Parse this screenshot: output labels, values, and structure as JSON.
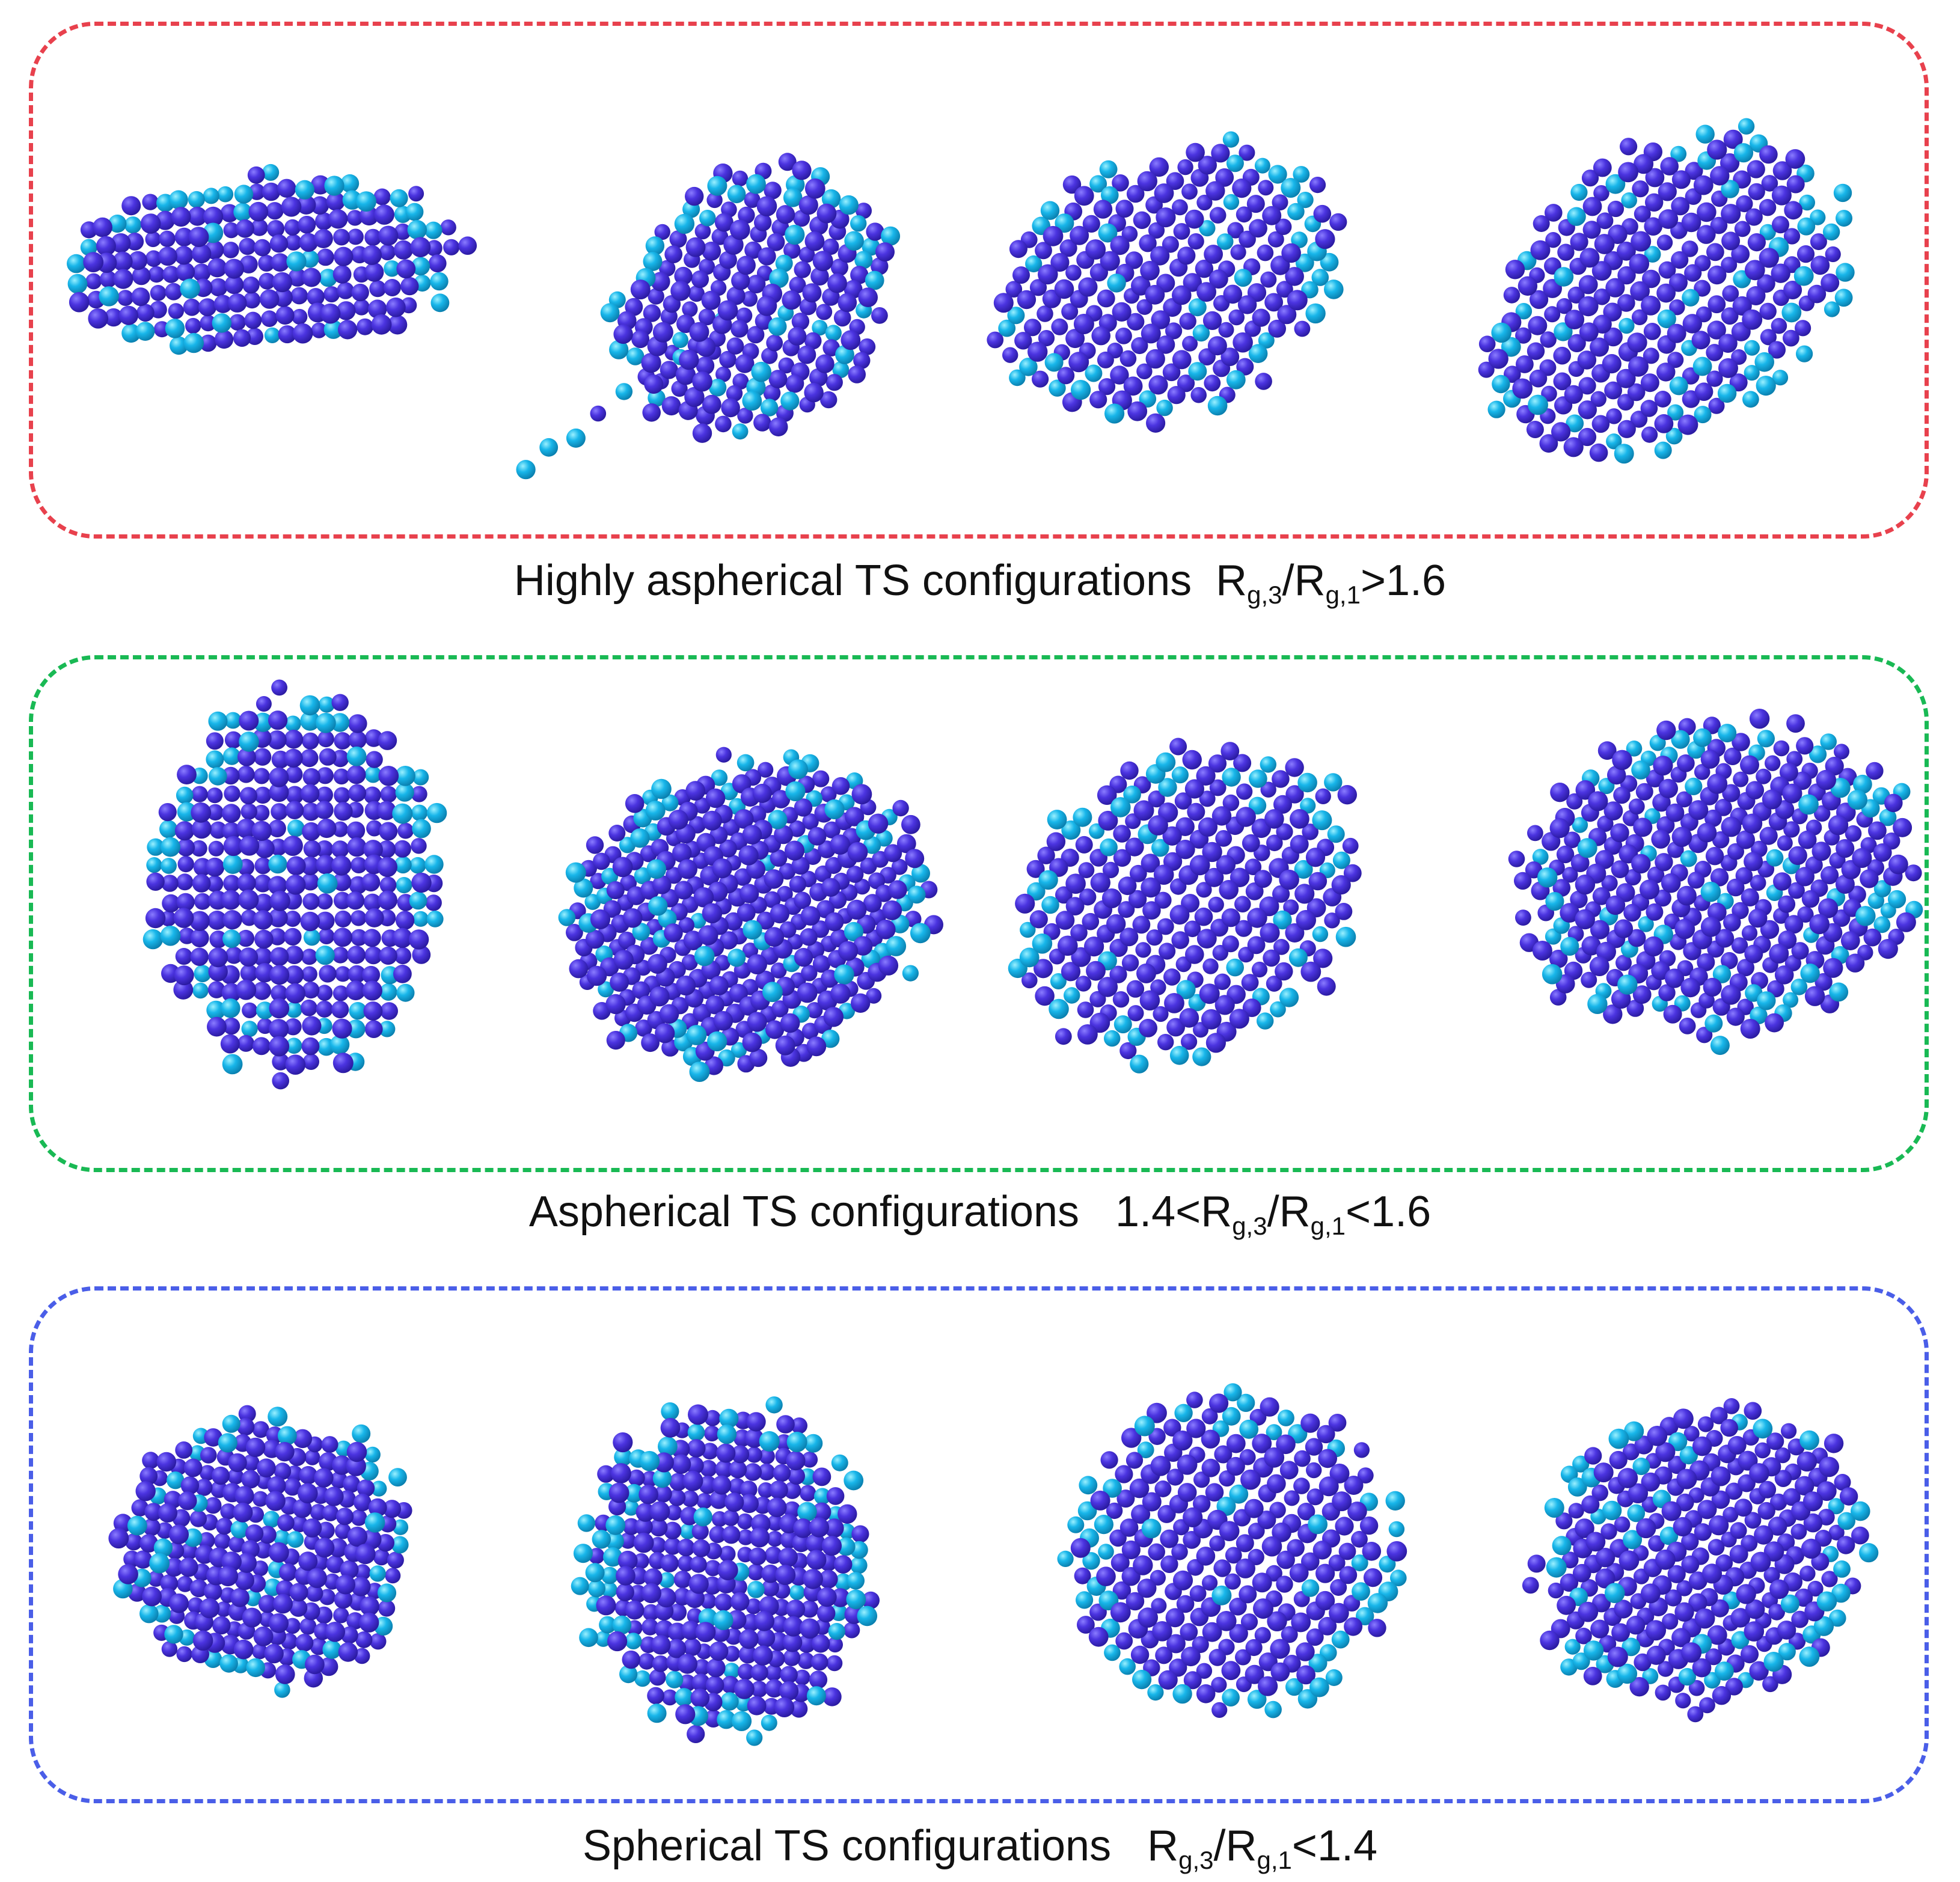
{
  "colors": {
    "panel_red": "#e8414d",
    "panel_green": "#19b954",
    "panel_blue": "#4a5ee8",
    "atom_core": "#4b34e0",
    "atom_surface": "#18b6ea"
  },
  "panels": [
    {
      "caption": {
        "prefix": "Highly aspherical TS configurations  ",
        "r1": "R",
        "s1": "g,3",
        "slash": "/",
        "r2": "R",
        "s2": "g,1",
        "suffix": ">1.6"
      }
    },
    {
      "caption": {
        "prefix": "Aspherical TS configurations   1.4<",
        "r1": "R",
        "s1": "g,3",
        "slash": "/",
        "r2": "R",
        "s2": "g,1",
        "suffix": "<1.6"
      }
    },
    {
      "caption": {
        "prefix": "Spherical TS configurations   ",
        "r1": "R",
        "s1": "g,3",
        "slash": "/",
        "r2": "R",
        "s2": "g,1",
        "suffix": "<1.4"
      }
    }
  ]
}
